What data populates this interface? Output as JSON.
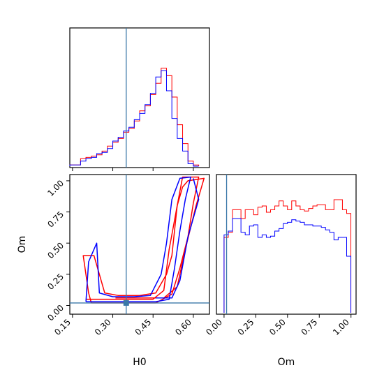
{
  "chart_data": {
    "type": "corner",
    "parameters": [
      "H0",
      "Om"
    ],
    "truths": {
      "H0": 0.35,
      "Om": 0.02
    },
    "series_colors": {
      "red": "#ff0000",
      "blue": "#0000ff",
      "truth": "#3a78a8"
    },
    "panels": [
      {
        "id": "hist-H0",
        "type": "histogram",
        "xlim": [
          0.14,
          0.66
        ],
        "bin_width": 0.02,
        "series": [
          {
            "color": "red",
            "values": [
              0.01,
              0.01,
              0.06,
              0.07,
              0.08,
              0.09,
              0.12,
              0.16,
              0.19,
              0.22,
              0.27,
              0.3,
              0.36,
              0.44,
              0.48,
              0.57,
              0.66,
              0.78,
              0.72,
              0.55,
              0.33,
              0.18,
              0.04,
              0.01
            ]
          },
          {
            "color": "blue",
            "values": [
              0.01,
              0.01,
              0.04,
              0.06,
              0.07,
              0.1,
              0.11,
              0.14,
              0.2,
              0.23,
              0.28,
              0.31,
              0.37,
              0.42,
              0.49,
              0.58,
              0.71,
              0.76,
              0.6,
              0.38,
              0.22,
              0.12,
              0.02,
              0.0
            ]
          }
        ]
      },
      {
        "id": "hist-Om",
        "type": "histogram",
        "xlim": [
          -0.06,
          1.04
        ],
        "bin_width": 0.0333,
        "series": [
          {
            "color": "red",
            "values": [
              0.6,
              0.64,
              0.82,
              0.82,
              0.75,
              0.82,
              0.82,
              0.78,
              0.84,
              0.85,
              0.8,
              0.82,
              0.85,
              0.89,
              0.85,
              0.82,
              0.89,
              0.85,
              0.82,
              0.81,
              0.83,
              0.85,
              0.86,
              0.86,
              0.82,
              0.82,
              0.9,
              0.9,
              0.82,
              0.79
            ]
          },
          {
            "color": "blue",
            "values": [
              0.62,
              0.65,
              0.75,
              0.75,
              0.64,
              0.62,
              0.69,
              0.7,
              0.6,
              0.62,
              0.6,
              0.61,
              0.65,
              0.67,
              0.71,
              0.72,
              0.74,
              0.73,
              0.72,
              0.7,
              0.7,
              0.69,
              0.69,
              0.68,
              0.66,
              0.64,
              0.58,
              0.6,
              0.6,
              0.45
            ]
          }
        ]
      },
      {
        "id": "contour-H0-Om",
        "type": "contour",
        "xlim": [
          0.14,
          0.66
        ],
        "ylim": [
          -0.07,
          1.05
        ],
        "series": [
          {
            "color": "red",
            "levels": [
              [
                [
                  0.22,
                  0.02
                ],
                [
                  0.26,
                  0.02
                ],
                [
                  0.32,
                  0.02
                ],
                [
                  0.38,
                  0.02
                ],
                [
                  0.46,
                  0.02
                ],
                [
                  0.52,
                  0.09
                ],
                [
                  0.55,
                  0.3
                ],
                [
                  0.58,
                  0.55
                ],
                [
                  0.6,
                  0.82
                ],
                [
                  0.62,
                  1.03
                ],
                [
                  0.56,
                  1.03
                ],
                [
                  0.54,
                  0.8
                ],
                [
                  0.52,
                  0.4
                ],
                [
                  0.5,
                  0.25
                ],
                [
                  0.46,
                  0.1
                ],
                [
                  0.4,
                  0.08
                ],
                [
                  0.32,
                  0.08
                ],
                [
                  0.27,
                  0.1
                ],
                [
                  0.23,
                  0.4
                ],
                [
                  0.19,
                  0.4
                ],
                [
                  0.21,
                  0.1
                ],
                [
                  0.22,
                  0.02
                ]
              ],
              [
                [
                  0.2,
                  0.05
                ],
                [
                  0.27,
                  0.05
                ],
                [
                  0.34,
                  0.05
                ],
                [
                  0.45,
                  0.05
                ],
                [
                  0.49,
                  0.12
                ],
                [
                  0.51,
                  0.45
                ],
                [
                  0.54,
                  0.8
                ],
                [
                  0.56,
                  0.95
                ],
                [
                  0.58,
                  1.0
                ],
                [
                  0.64,
                  1.02
                ],
                [
                  0.61,
                  0.8
                ],
                [
                  0.57,
                  0.45
                ],
                [
                  0.54,
                  0.15
                ],
                [
                  0.49,
                  0.06
                ],
                [
                  0.41,
                  0.06
                ],
                [
                  0.31,
                  0.06
                ]
              ]
            ]
          },
          {
            "color": "blue",
            "levels": [
              [
                [
                  0.2,
                  0.03
                ],
                [
                  0.26,
                  0.03
                ],
                [
                  0.33,
                  0.03
                ],
                [
                  0.4,
                  0.03
                ],
                [
                  0.46,
                  0.03
                ],
                [
                  0.51,
                  0.05
                ],
                [
                  0.53,
                  0.3
                ],
                [
                  0.55,
                  0.6
                ],
                [
                  0.57,
                  0.85
                ],
                [
                  0.59,
                  1.03
                ],
                [
                  0.55,
                  1.02
                ],
                [
                  0.52,
                  0.85
                ],
                [
                  0.5,
                  0.5
                ],
                [
                  0.48,
                  0.25
                ],
                [
                  0.44,
                  0.08
                ],
                [
                  0.38,
                  0.07
                ],
                [
                  0.3,
                  0.07
                ],
                [
                  0.25,
                  0.1
                ],
                [
                  0.24,
                  0.5
                ],
                [
                  0.21,
                  0.35
                ],
                [
                  0.2,
                  0.03
                ]
              ],
              [
                [
                  0.6,
                  1.02
                ],
                [
                  0.62,
                  0.85
                ],
                [
                  0.58,
                  0.55
                ],
                [
                  0.55,
                  0.2
                ],
                [
                  0.52,
                  0.06
                ],
                [
                  0.46,
                  0.06
                ]
              ]
            ]
          }
        ]
      }
    ],
    "x_ticks_H0": [
      "0.15",
      "0.30",
      "0.45",
      "0.60"
    ],
    "y_ticks_Om": [
      "0.00",
      "0.25",
      "0.50",
      "0.75",
      "1.00"
    ],
    "x_ticks_Om": [
      "0.00",
      "0.25",
      "0.50",
      "0.75",
      "1.00"
    ],
    "xlabel_H0": "H0",
    "ylabel_Om": "Om",
    "xlabel_Om": "Om"
  }
}
